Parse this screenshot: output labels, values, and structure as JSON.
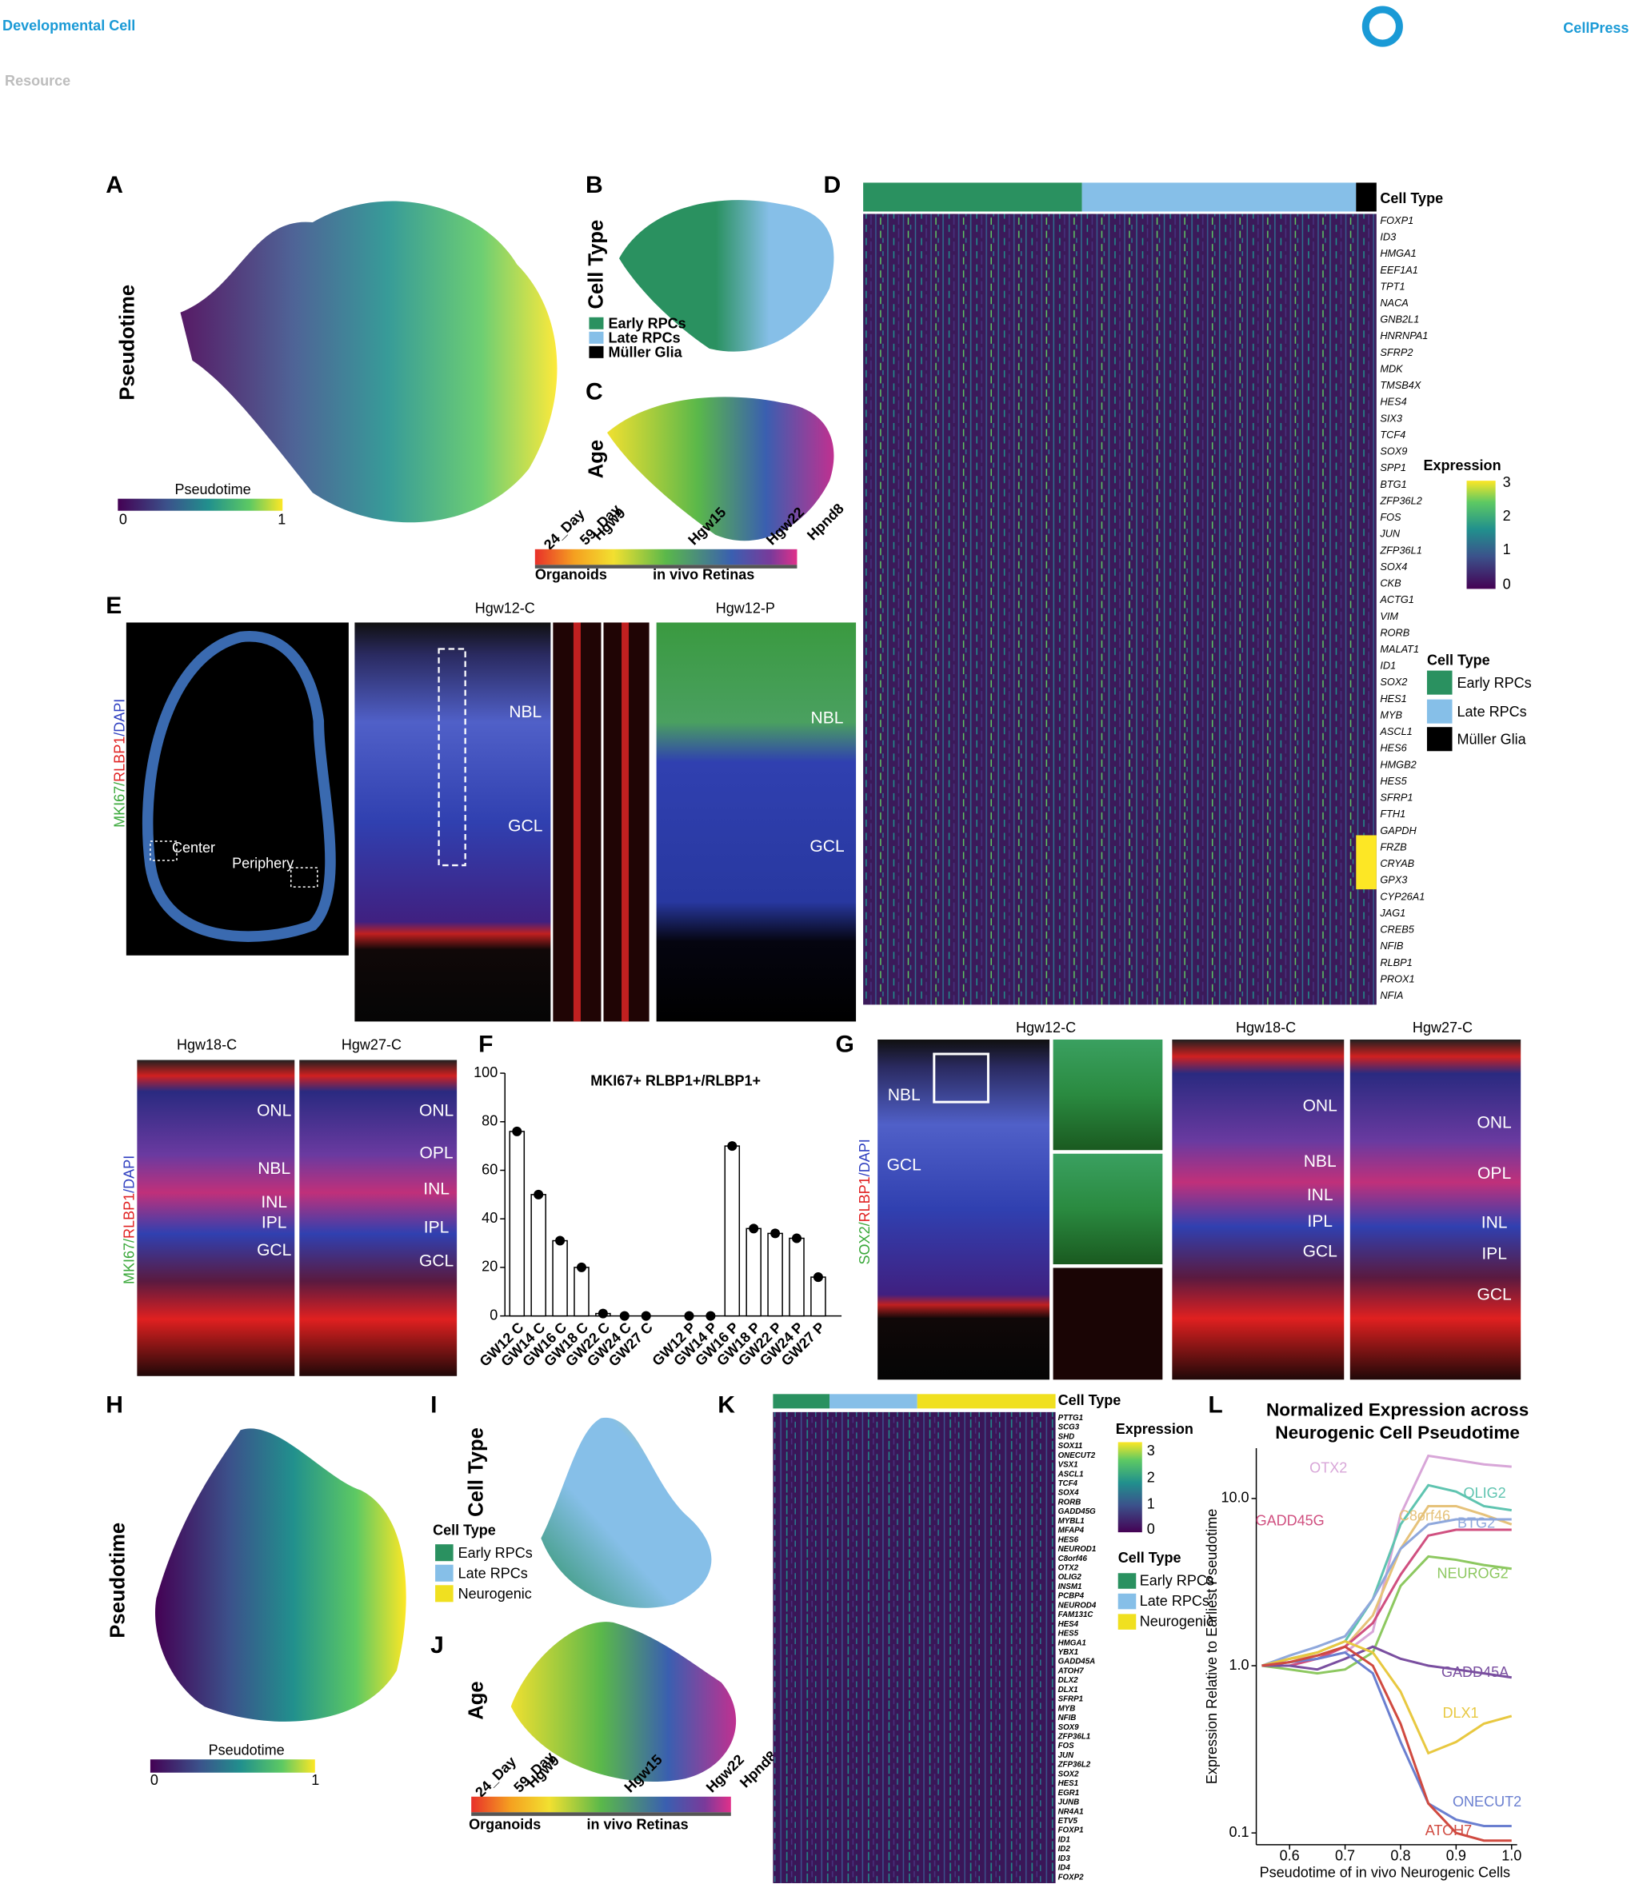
{
  "header": {
    "journal": "Developmental Cell",
    "section": "Resource",
    "publisher": "CellPress"
  },
  "panels": {
    "A": {
      "label": "A",
      "ylabel": "Pseudotime",
      "legend_title": "Pseudotime",
      "legend_min": "0",
      "legend_max": "1"
    },
    "B": {
      "label": "B",
      "ylabel": "Cell Type",
      "legend": [
        "Early RPCs",
        "Late RPCs",
        "Müller Glia"
      ]
    },
    "C": {
      "label": "C",
      "ylabel": "Age",
      "ages": [
        "24_Day",
        "59_Day",
        "Hgw9",
        "Hgw15",
        "Hgw22",
        "Hpnd8"
      ],
      "group_left": "Organoids",
      "group_right": "in vivo Retinas"
    },
    "D": {
      "label": "D",
      "celltype_title": "Cell Type",
      "genes": [
        "FOXP1",
        "ID3",
        "HMGA1",
        "EEF1A1",
        "TPT1",
        "NACA",
        "GNB2L1",
        "HNRNPA1",
        "SFRP2",
        "MDK",
        "TMSB4X",
        "HES4",
        "SIX3",
        "TCF4",
        "SOX9",
        "SPP1",
        "BTG1",
        "ZFP36L2",
        "FOS",
        "JUN",
        "ZFP36L1",
        "SOX4",
        "CKB",
        "ACTG1",
        "VIM",
        "RORB",
        "MALAT1",
        "ID1",
        "SOX2",
        "HES1",
        "MYB",
        "ASCL1",
        "HES6",
        "HMGB2",
        "HES5",
        "SFRP1",
        "FTH1",
        "GAPDH",
        "FRZB",
        "CRYAB",
        "GPX3",
        "CYP26A1",
        "JAG1",
        "CREB5",
        "NFIB",
        "RLBP1",
        "PROX1",
        "NFIA"
      ],
      "expression_title": "Expression",
      "expression_ticks": [
        "3",
        "2",
        "1",
        "0"
      ],
      "legend_title": "Cell Type",
      "legend": [
        "Early RPCs",
        "Late RPCs",
        "Müller Glia"
      ]
    },
    "E": {
      "label": "E",
      "stain": [
        "MKI67/",
        "RLBP1",
        "/DAPI"
      ],
      "titles": [
        "Hgw12-C",
        "Hgw12-P",
        "Hgw18-C",
        "Hgw27-C"
      ],
      "overview": [
        "Center",
        "Periphery"
      ],
      "layers_12c": [
        "NBL",
        "GCL"
      ],
      "layers_12p": [
        "NBL",
        "GCL"
      ],
      "layers_18c": [
        "ONL",
        "NBL",
        "INL",
        "IPL",
        "GCL"
      ],
      "layers_27c": [
        "ONL",
        "OPL",
        "INL",
        "IPL",
        "GCL"
      ]
    },
    "F": {
      "label": "F"
    },
    "G": {
      "label": "G",
      "stain": [
        "SOX2/",
        "RLBP1",
        "/DAPI"
      ],
      "titles": [
        "Hgw12-C",
        "Hgw18-C",
        "Hgw27-C"
      ],
      "layers_12c": [
        "NBL",
        "GCL"
      ],
      "layers_18c": [
        "ONL",
        "NBL",
        "INL",
        "IPL",
        "GCL"
      ],
      "layers_27c": [
        "ONL",
        "OPL",
        "INL",
        "IPL",
        "GCL"
      ]
    },
    "H": {
      "label": "H",
      "ylabel": "Pseudotime",
      "legend_title": "Pseudotime",
      "legend_min": "0",
      "legend_max": "1"
    },
    "I": {
      "label": "I",
      "ylabel": "Cell Type",
      "legend_title": "Cell Type",
      "legend": [
        "Early RPCs",
        "Late RPCs",
        "Neurogenic"
      ]
    },
    "J": {
      "label": "J",
      "ylabel": "Age",
      "ages": [
        "24_Day",
        "59_Day",
        "Hgw9",
        "Hgw15",
        "Hgw22",
        "Hpnd8"
      ],
      "group_left": "Organoids",
      "group_right": "in vivo Retinas"
    },
    "K": {
      "label": "K",
      "celltype_title": "Cell Type",
      "genes": [
        "PTTG1",
        "SCG3",
        "SHD",
        "SOX11",
        "ONECUT2",
        "VSX1",
        "ASCL1",
        "TCF4",
        "SOX4",
        "RORB",
        "GADD45G",
        "MYBL1",
        "MFAP4",
        "HES6",
        "NEUROD1",
        "C8orf46",
        "OTX2",
        "OLIG2",
        "INSM1",
        "PCBP4",
        "NEUROD4",
        "FAM131C",
        "HES4",
        "HES5",
        "HMGA1",
        "YBX1",
        "GADD45A",
        "ATOH7",
        "DLX2",
        "DLX1",
        "SFRP1",
        "MYB",
        "NFIB",
        "SOX9",
        "ZFP36L1",
        "FOS",
        "JUN",
        "ZFP36L2",
        "SOX2",
        "HES1",
        "EGR1",
        "JUNB",
        "NR4A1",
        "ETV5",
        "FOXP1",
        "ID1",
        "ID2",
        "ID3",
        "ID4",
        "FOXP2"
      ],
      "expression_title": "Expression",
      "expression_ticks": [
        "3",
        "2",
        "1",
        "0"
      ],
      "legend_title": "Cell Type",
      "legend": [
        "Early RPCs",
        "Late RPCs",
        "Neurogenic"
      ]
    },
    "L": {
      "label": "L"
    }
  },
  "chart_data": [
    {
      "type": "bar",
      "title": "MKI67+ RLBP1+/RLBP1+",
      "categories": [
        "GW12 C",
        "GW14 C",
        "GW16 C",
        "GW18 C",
        "GW22 C",
        "GW24 C",
        "GW27 C",
        "GW12 P",
        "GW14 P",
        "GW16 P",
        "GW18 P",
        "GW22 P",
        "GW24 P",
        "GW27 P"
      ],
      "values": [
        76,
        50,
        31,
        20,
        1,
        0,
        0,
        0,
        0,
        70,
        36,
        34,
        32,
        16
      ],
      "color": "#ffffff",
      "ylim": [
        0,
        100
      ],
      "yticks": [
        0,
        20,
        40,
        60,
        80,
        100
      ]
    },
    {
      "type": "line",
      "title": "Normalized Expression across Neurogenic Cell Pseudotime",
      "xlabel": "Pseudotime of in vivo Neurogenic Cells",
      "ylabel": "Expression Relative to Earliest Pseudotime",
      "log_y": true,
      "x": [
        0.55,
        0.6,
        0.65,
        0.7,
        0.75,
        0.8,
        0.85,
        0.9,
        0.95,
        1.0
      ],
      "xlim": [
        0.54,
        1.01
      ],
      "xticks": [
        0.6,
        0.7,
        0.8,
        0.9,
        {
          "value": 1,
          "label": "1.0"
        }
      ],
      "ylim": [
        0.085,
        20
      ],
      "yticks": [
        0.1,
        {
          "value": 1,
          "label": "1.0"
        },
        {
          "value": 10,
          "label": "10.0"
        }
      ],
      "series": [
        {
          "name": "OTX2",
          "color": "#d8a6d8",
          "values": [
            1,
            1.05,
            1.1,
            1.2,
            1.6,
            8,
            18,
            17,
            16,
            15.5
          ]
        },
        {
          "name": "OLIG2",
          "color": "#5fc4b0",
          "values": [
            1,
            1.1,
            1.2,
            1.4,
            2.5,
            7,
            12,
            11,
            9,
            8.5
          ]
        },
        {
          "name": "C8orf46",
          "color": "#e6c27a",
          "values": [
            1,
            1.1,
            1.15,
            1.3,
            2,
            5,
            9,
            9,
            8,
            7
          ]
        },
        {
          "name": "BTG2",
          "color": "#8fa8dc",
          "values": [
            1,
            1.15,
            1.3,
            1.5,
            2.5,
            5,
            7,
            7.5,
            7.5,
            7.5
          ]
        },
        {
          "name": "GADD45G",
          "color": "#d05080",
          "values": [
            1,
            1,
            1.1,
            1.3,
            1.8,
            3.5,
            6,
            6.5,
            6.5,
            6.5
          ]
        },
        {
          "name": "NEUROG2",
          "color": "#8dc860",
          "values": [
            1,
            0.95,
            0.9,
            0.95,
            1.2,
            3,
            4.5,
            4.3,
            4,
            3.8
          ]
        },
        {
          "name": "GADD45A",
          "color": "#7a4fa0",
          "values": [
            1,
            1,
            0.95,
            1.1,
            1.3,
            1.1,
            1,
            0.95,
            0.9,
            0.85
          ]
        },
        {
          "name": "DLX1",
          "color": "#e8c840",
          "values": [
            1,
            1.1,
            1.2,
            1.4,
            1.2,
            0.7,
            0.3,
            0.35,
            0.45,
            0.5
          ]
        },
        {
          "name": "ONECUT2",
          "color": "#6a7fd0",
          "values": [
            1,
            1.05,
            1.1,
            1.2,
            0.9,
            0.35,
            0.15,
            0.12,
            0.11,
            0.11
          ]
        },
        {
          "name": "ATOH7",
          "color": "#d04a40",
          "values": [
            1,
            1.05,
            1.15,
            1.3,
            1,
            0.45,
            0.15,
            0.1,
            0.09,
            0.09
          ]
        }
      ]
    }
  ]
}
